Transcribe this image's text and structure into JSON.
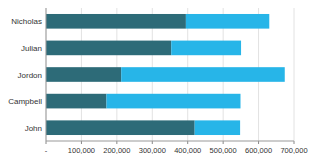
{
  "chart_data": {
    "type": "bar",
    "orientation": "horizontal",
    "stacked": true,
    "categories": [
      "John",
      "Campbell",
      "Jordon",
      "Julian",
      "Nicholas"
    ],
    "series": [
      {
        "color": "#2d6b78",
        "values": [
          419598,
          170690,
          212228,
          353466,
          394858
        ]
      },
      {
        "color": "#27b5e8",
        "values": [
          128277,
          378290,
          461678,
          197095,
          235365
        ]
      }
    ],
    "xlim": [
      0,
      700000
    ],
    "xticks": [
      {
        "value": 0,
        "label": "-"
      },
      {
        "value": 100000,
        "label": "100,000"
      },
      {
        "value": 200000,
        "label": "200,000"
      },
      {
        "value": 300000,
        "label": "300,000"
      },
      {
        "value": 400000,
        "label": "400,000"
      },
      {
        "value": 500000,
        "label": "500,000"
      },
      {
        "value": 600000,
        "label": "600,000"
      },
      {
        "value": 700000,
        "label": "700,000"
      }
    ],
    "grid": true
  }
}
